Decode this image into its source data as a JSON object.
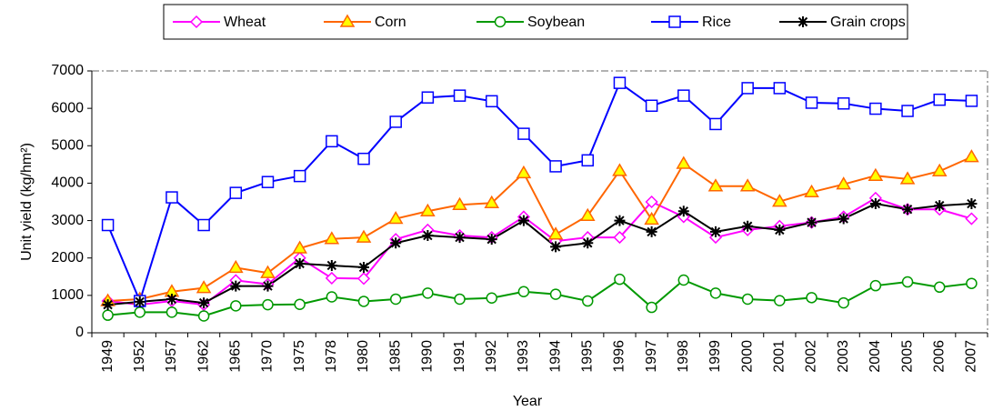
{
  "chart_data": {
    "type": "line",
    "x_label": "Year",
    "y_label": "Unit yield (kg/hm²)",
    "categories": [
      "1949",
      "1952",
      "1957",
      "1962",
      "1965",
      "1970",
      "1975",
      "1978",
      "1980",
      "1985",
      "1990",
      "1991",
      "1992",
      "1993",
      "1994",
      "1995",
      "1996",
      "1997",
      "1998",
      "1999",
      "2000",
      "2001",
      "2002",
      "2003",
      "2004",
      "2005",
      "2006",
      "2007"
    ],
    "ylim": [
      0,
      7000
    ],
    "yticks": [
      0,
      1000,
      2000,
      3000,
      4000,
      5000,
      6000,
      7000
    ],
    "series": [
      {
        "name": "Wheat",
        "color": "#ff00ff",
        "marker": "diamond",
        "values": [
          850,
          750,
          850,
          750,
          1400,
          1300,
          2000,
          1460,
          1450,
          2500,
          2750,
          2600,
          2550,
          3100,
          2450,
          2550,
          2550,
          3500,
          3100,
          2550,
          2750,
          2850,
          2950,
          3100,
          3600,
          3300,
          3300,
          3050
        ]
      },
      {
        "name": "Corn",
        "color": "#ff6600",
        "marker": "triangle",
        "values": [
          850,
          900,
          1100,
          1200,
          1740,
          1600,
          2260,
          2510,
          2550,
          3050,
          3250,
          3420,
          3470,
          4270,
          2630,
          3130,
          4330,
          3030,
          4520,
          3920,
          3920,
          3510,
          3760,
          3970,
          4200,
          4110,
          4320,
          4700
        ]
      },
      {
        "name": "Soybean",
        "color": "#009900",
        "marker": "circle",
        "values": [
          470,
          550,
          550,
          450,
          720,
          750,
          760,
          960,
          840,
          900,
          1060,
          900,
          930,
          1100,
          1030,
          850,
          1430,
          680,
          1410,
          1060,
          900,
          860,
          940,
          800,
          1260,
          1360,
          1220,
          1320
        ]
      },
      {
        "name": "Rice",
        "color": "#0000ff",
        "marker": "square",
        "values": [
          2880,
          850,
          3620,
          2880,
          3740,
          4030,
          4190,
          5120,
          4650,
          5640,
          6290,
          6340,
          6190,
          5320,
          4450,
          4610,
          6680,
          6070,
          6340,
          5580,
          6540,
          6540,
          6150,
          6130,
          5990,
          5930,
          6230,
          6200
        ]
      },
      {
        "name": "Grain crops",
        "color": "#000000",
        "marker": "asterisk",
        "values": [
          750,
          830,
          900,
          800,
          1250,
          1250,
          1850,
          1800,
          1750,
          2400,
          2600,
          2550,
          2500,
          3000,
          2300,
          2400,
          3000,
          2700,
          3250,
          2700,
          2850,
          2750,
          2950,
          3050,
          3450,
          3300,
          3400,
          3450
        ]
      }
    ]
  }
}
